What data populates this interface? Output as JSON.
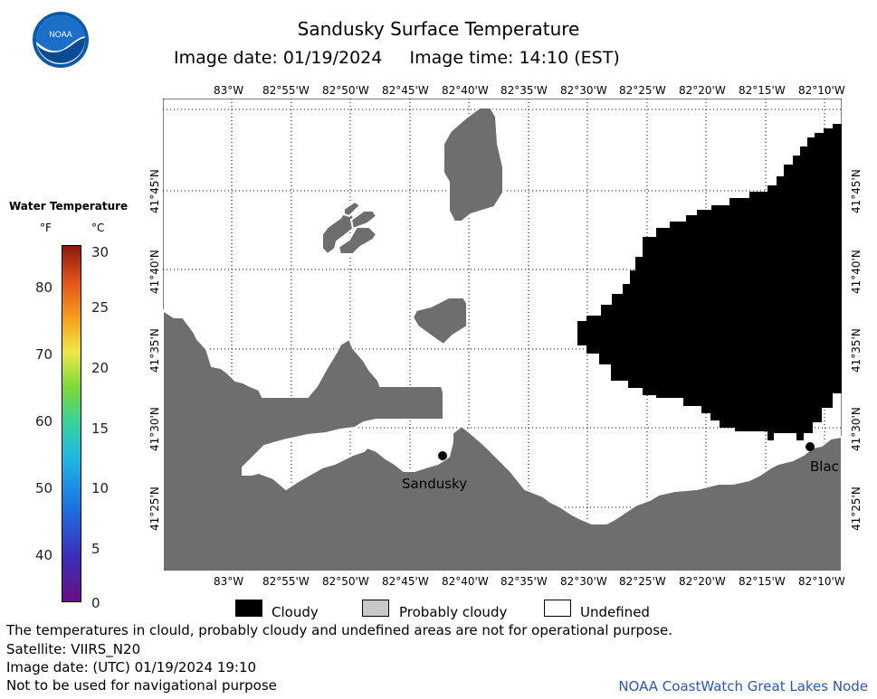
{
  "title": "Sandusky Surface Temperature",
  "subtitle": "Image date: 01/19/2024     Image time: 14:10 (EST)",
  "logo_text": "NOAA",
  "lon_ticks": [
    "83°W",
    "82°55'W",
    "82°50'W",
    "82°45'W",
    "82°40'W",
    "82°35'W",
    "82°30'W",
    "82°25'W",
    "82°20'W",
    "82°15'W",
    "82°10'W"
  ],
  "lat_ticks": [
    "41°45'N",
    "41°40'N",
    "41°35'N",
    "41°30'N",
    "41°25'N"
  ],
  "places": {
    "sandusky": "Sandusky",
    "bla": "Blac"
  },
  "colorbar": {
    "title": "Water Temperature",
    "unit_f": "°F",
    "unit_c": "°C",
    "f_labels": [
      "80",
      "70",
      "60",
      "50",
      "40"
    ],
    "c_labels": [
      "30",
      "25",
      "20",
      "15",
      "10",
      "5",
      "0"
    ]
  },
  "legend": {
    "cloudy": "Cloudy",
    "probably_cloudy": "Probably cloudy",
    "undefined": "Undefined"
  },
  "colors": {
    "land": "#6e6e6e",
    "cloudy": "#000000",
    "probably_cloudy": "#c8c8c8",
    "undefined": "#ffffff"
  },
  "footer": {
    "line1": "The temperatures in clould, probably cloudy and undefined areas are not for operational purpose.",
    "line2": "Satellite: VIIRS_N20",
    "line3": "Image date: (UTC) 01/19/2024  19:10",
    "line4": "Not to be used for navigational purpose",
    "credit": "NOAA CoastWatch Great Lakes Node"
  }
}
